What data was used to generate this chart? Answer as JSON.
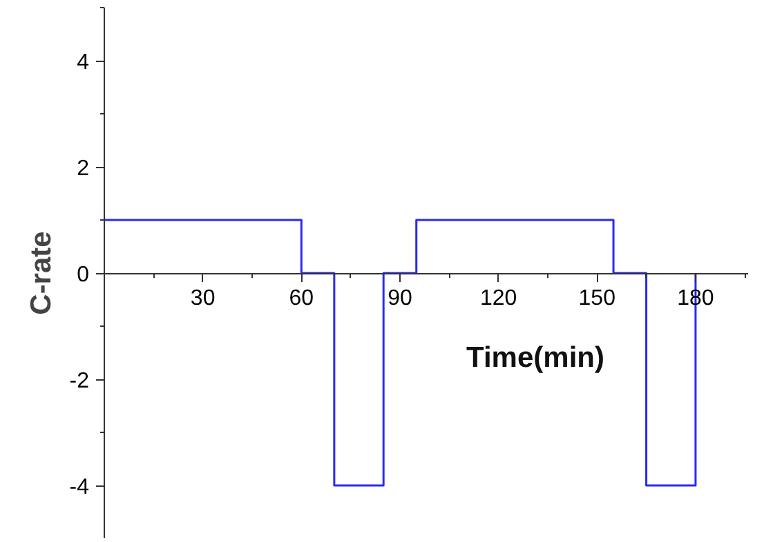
{
  "chart_data": {
    "type": "step",
    "xlabel": "Time(min)",
    "ylabel": "C-rate",
    "x": [
      0,
      60,
      70,
      85,
      95,
      155,
      165,
      180
    ],
    "series": [
      {
        "color": "#2a2af0",
        "values": [
          1,
          0,
          -4,
          0,
          1,
          0,
          -4,
          0
        ]
      }
    ],
    "xlim": [
      0,
      196
    ],
    "ylim": [
      -5,
      5
    ],
    "xticks": [
      {
        "value": 15,
        "label": null
      },
      30,
      {
        "value": 45,
        "label": null
      },
      60,
      {
        "value": 75,
        "label": null
      },
      90,
      {
        "value": 105,
        "label": null
      },
      120,
      {
        "value": 135,
        "label": null
      },
      150,
      {
        "value": 165,
        "label": null
      },
      180,
      {
        "value": 195,
        "label": null
      }
    ],
    "yticks": [
      {
        "value": -5,
        "label": null
      },
      -4,
      {
        "value": -3,
        "label": null
      },
      -2,
      {
        "value": -1,
        "label": null
      },
      0,
      {
        "value": 1,
        "label": null
      },
      2,
      {
        "value": 3,
        "label": null
      },
      4,
      {
        "value": 5,
        "label": null
      }
    ],
    "grid": false
  }
}
